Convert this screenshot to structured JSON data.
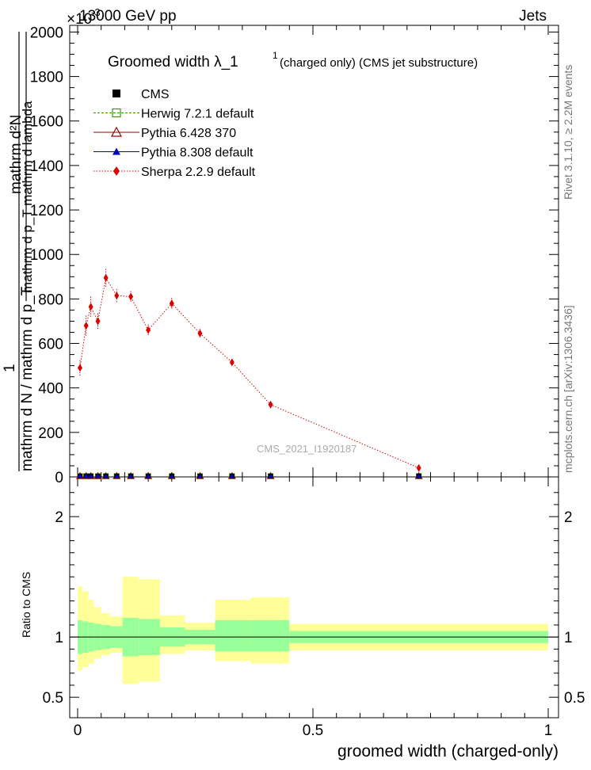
{
  "header": {
    "left": "13000 GeV pp",
    "right": "Jets",
    "exponent": "×10",
    "exponent_power": "-3"
  },
  "side_labels": {
    "rivet": "Rivet 3.1.10, ≥ 2.2M events",
    "mcplots": "mcplots.cern.ch [arXiv:1306.3436]"
  },
  "chart_data": {
    "type": "line",
    "title": "Groomed width  λ_1¹ (charged only) (CMS jet substructure)",
    "title_main": "Groomed width  λ_1",
    "title_sup": "1",
    "title_tail": "(charged only) (CMS jet substructure)",
    "watermark": "CMS_2021_I1920187",
    "xlabel": "groomed width (charged-only)",
    "ylabel": "1 / (mathrm d N / mathrm d p_T) · mathrm d²N / (mathrm d p_T mathrm d lambda)",
    "ylabel_lines": [
      "mathrm d²N",
      "mathrm d p_T mathrm d lambda",
      "1",
      "mathrm d N / mathrm d p_T"
    ],
    "xlim": [
      0,
      1
    ],
    "ylim": [
      0,
      2030
    ],
    "xticks": [
      "0",
      "0.5",
      "1"
    ],
    "yticks": [
      "0",
      "200",
      "400",
      "600",
      "800",
      "1000",
      "1200",
      "1400",
      "1600",
      "1800",
      "2000"
    ],
    "legend": {
      "placement": "top-left",
      "entries": [
        "CMS",
        "Herwig 7.2.1 default",
        "Pythia 6.428 370",
        "Pythia 8.308 default",
        "Sherpa 2.2.9 default"
      ]
    },
    "series": [
      {
        "name": "Sherpa 2.2.9 default",
        "color": "#dd0000",
        "x": [
          0.005,
          0.018,
          0.028,
          0.043,
          0.06,
          0.083,
          0.113,
          0.15,
          0.2,
          0.26,
          0.328,
          0.41,
          0.725
        ],
        "y": [
          490,
          680,
          765,
          700,
          895,
          815,
          810,
          660,
          780,
          645,
          515,
          325,
          40
        ],
        "err": [
          35,
          45,
          45,
          35,
          40,
          30,
          25,
          25,
          25,
          20,
          15,
          12,
          8
        ]
      },
      {
        "name": "CMS",
        "color": "#000000",
        "x": [
          0.005,
          0.018,
          0.028,
          0.043,
          0.06,
          0.083,
          0.113,
          0.15,
          0.2,
          0.26,
          0.328,
          0.41,
          0.725
        ],
        "y": [
          0,
          0,
          0,
          0,
          0,
          0,
          0,
          0,
          0,
          0,
          0,
          0,
          0
        ]
      },
      {
        "name": "Herwig 7.2.1 default",
        "color": "#339900",
        "x": [
          0.005,
          0.018,
          0.028,
          0.043,
          0.06,
          0.083,
          0.113,
          0.15,
          0.2,
          0.26,
          0.328,
          0.41,
          0.725
        ],
        "y": [
          0,
          0,
          0,
          0,
          0,
          0,
          0,
          0,
          0,
          0,
          0,
          0,
          0
        ]
      },
      {
        "name": "Pythia 6.428 370",
        "color": "#990000",
        "x": [
          0.005,
          0.018,
          0.028,
          0.043,
          0.06,
          0.083,
          0.113,
          0.15,
          0.2,
          0.26,
          0.328,
          0.41,
          0.725
        ],
        "y": [
          0,
          0,
          0,
          0,
          0,
          0,
          0,
          0,
          0,
          0,
          0,
          0,
          0
        ]
      },
      {
        "name": "Pythia 8.308 default",
        "color": "#0000cc",
        "x": [
          0.005,
          0.018,
          0.028,
          0.043,
          0.06,
          0.083,
          0.113,
          0.15,
          0.2,
          0.26,
          0.328,
          0.41,
          0.725
        ],
        "y": [
          0,
          0,
          0,
          0,
          0,
          0,
          0,
          0,
          0,
          0,
          0,
          0,
          0
        ]
      }
    ],
    "ratio": {
      "ylabel": "Ratio to CMS",
      "ylim": [
        0.33,
        2.33
      ],
      "yticks": [
        "0.5",
        "1",
        "2"
      ],
      "band_color_inner": "#99ff99",
      "band_color_outer": "#ffff99",
      "bins": [
        {
          "x0": 0.0,
          "x1": 0.01,
          "in_lo": 0.86,
          "in_hi": 1.14,
          "out_lo": 0.72,
          "out_hi": 1.42
        },
        {
          "x0": 0.01,
          "x1": 0.023,
          "in_lo": 0.87,
          "in_hi": 1.13,
          "out_lo": 0.75,
          "out_hi": 1.38
        },
        {
          "x0": 0.023,
          "x1": 0.035,
          "in_lo": 0.88,
          "in_hi": 1.12,
          "out_lo": 0.78,
          "out_hi": 1.31
        },
        {
          "x0": 0.035,
          "x1": 0.05,
          "in_lo": 0.89,
          "in_hi": 1.11,
          "out_lo": 0.82,
          "out_hi": 1.25
        },
        {
          "x0": 0.05,
          "x1": 0.07,
          "in_lo": 0.9,
          "in_hi": 1.1,
          "out_lo": 0.85,
          "out_hi": 1.2
        },
        {
          "x0": 0.07,
          "x1": 0.095,
          "in_lo": 0.91,
          "in_hi": 1.09,
          "out_lo": 0.87,
          "out_hi": 1.17
        },
        {
          "x0": 0.095,
          "x1": 0.13,
          "in_lo": 0.84,
          "in_hi": 1.16,
          "out_lo": 0.61,
          "out_hi": 1.5
        },
        {
          "x0": 0.13,
          "x1": 0.175,
          "in_lo": 0.85,
          "in_hi": 1.15,
          "out_lo": 0.63,
          "out_hi": 1.48
        },
        {
          "x0": 0.175,
          "x1": 0.228,
          "in_lo": 0.92,
          "in_hi": 1.08,
          "out_lo": 0.86,
          "out_hi": 1.18
        },
        {
          "x0": 0.228,
          "x1": 0.292,
          "in_lo": 0.94,
          "in_hi": 1.06,
          "out_lo": 0.89,
          "out_hi": 1.12
        },
        {
          "x0": 0.292,
          "x1": 0.368,
          "in_lo": 0.88,
          "in_hi": 1.14,
          "out_lo": 0.8,
          "out_hi": 1.31
        },
        {
          "x0": 0.368,
          "x1": 0.45,
          "in_lo": 0.88,
          "in_hi": 1.14,
          "out_lo": 0.78,
          "out_hi": 1.33
        },
        {
          "x0": 0.45,
          "x1": 1.0,
          "in_lo": 0.95,
          "in_hi": 1.05,
          "out_lo": 0.89,
          "out_hi": 1.11
        }
      ]
    }
  }
}
